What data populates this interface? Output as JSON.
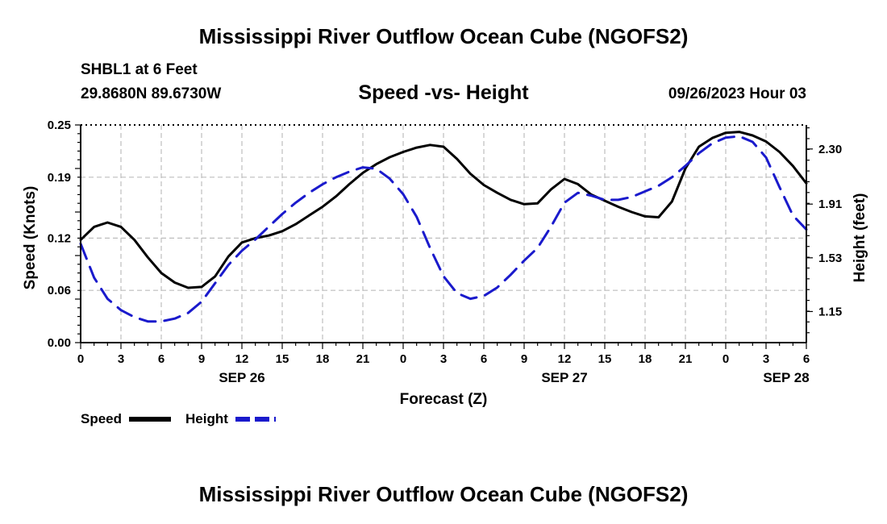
{
  "page": {
    "title_top": "Mississippi River Outflow Ocean Cube (NGOFS2)",
    "title_bottom": "Mississippi River Outflow Ocean Cube (NGOFS2)",
    "station": "SHBL1 at 6 Feet",
    "coords": "29.8680N  89.6730W",
    "subtitle": "Speed -vs- Height",
    "run_time": "09/26/2023 Hour 03"
  },
  "colors": {
    "speed": "#000000",
    "height": "#1a1acc",
    "grid": "#bdbdbd"
  },
  "chart_data": {
    "type": "line",
    "title": "Speed -vs- Height",
    "xlabel": "Forecast (Z)",
    "ylabel": "Speed (Knots)",
    "y2label": "Height (feet)",
    "x_range": [
      0,
      54
    ],
    "ylim": [
      0,
      0.25
    ],
    "y2lim": [
      0.93,
      2.47
    ],
    "x_ticks": [
      0,
      3,
      6,
      9,
      12,
      15,
      18,
      21,
      24,
      27,
      30,
      33,
      36,
      39,
      42,
      45,
      48,
      51,
      54
    ],
    "x_tick_labels": [
      "0",
      "3",
      "6",
      "9",
      "12",
      "15",
      "18",
      "21",
      "0",
      "3",
      "6",
      "9",
      "12",
      "15",
      "18",
      "21",
      "0",
      "3",
      "6"
    ],
    "date_labels": [
      {
        "x": 12,
        "label": "SEP 26"
      },
      {
        "x": 36,
        "label": "SEP 27"
      },
      {
        "x": 52.5,
        "label": "SEP 28"
      }
    ],
    "y_ticks": [
      0.0,
      0.06,
      0.12,
      0.19,
      0.25
    ],
    "y_tick_labels": [
      "0.00",
      "0.06",
      "0.12",
      "0.19",
      "0.25"
    ],
    "y2_ticks": [
      1.15,
      1.53,
      1.91,
      2.3
    ],
    "y2_tick_labels": [
      "1.15",
      "1.53",
      "1.91",
      "2.30"
    ],
    "grid": true,
    "legend": {
      "position": "bottom-left",
      "speed_label": "Speed",
      "height_label": "Height"
    },
    "series": [
      {
        "name": "Speed",
        "axis": "left",
        "style": "solid",
        "x": [
          0,
          1,
          2,
          3,
          4,
          5,
          6,
          7,
          8,
          9,
          10,
          11,
          12,
          13,
          14,
          15,
          16,
          17,
          18,
          19,
          20,
          21,
          22,
          23,
          24,
          25,
          26,
          27,
          28,
          29,
          30,
          31,
          32,
          33,
          34,
          35,
          36,
          37,
          38,
          39,
          40,
          41,
          42,
          43,
          44,
          45,
          46,
          47,
          48,
          49,
          50,
          51,
          52,
          53,
          54
        ],
        "values": [
          0.118,
          0.133,
          0.138,
          0.133,
          0.118,
          0.098,
          0.08,
          0.069,
          0.063,
          0.064,
          0.076,
          0.099,
          0.115,
          0.12,
          0.123,
          0.128,
          0.136,
          0.146,
          0.156,
          0.168,
          0.182,
          0.195,
          0.205,
          0.213,
          0.219,
          0.224,
          0.227,
          0.225,
          0.211,
          0.194,
          0.181,
          0.172,
          0.164,
          0.159,
          0.16,
          0.176,
          0.188,
          0.182,
          0.17,
          0.163,
          0.156,
          0.15,
          0.145,
          0.144,
          0.162,
          0.2,
          0.225,
          0.235,
          0.241,
          0.242,
          0.238,
          0.231,
          0.219,
          0.203,
          0.183
        ]
      },
      {
        "name": "Height",
        "axis": "right",
        "style": "dashed",
        "x": [
          0,
          1,
          2,
          3,
          4,
          5,
          6,
          7,
          8,
          9,
          10,
          11,
          12,
          13,
          14,
          15,
          16,
          17,
          18,
          19,
          20,
          21,
          22,
          23,
          24,
          25,
          26,
          27,
          28,
          29,
          30,
          31,
          32,
          33,
          34,
          35,
          36,
          37,
          38,
          39,
          40,
          41,
          42,
          43,
          44,
          45,
          46,
          47,
          48,
          49,
          50,
          51,
          52,
          53,
          54
        ],
        "values": [
          1.63,
          1.39,
          1.24,
          1.16,
          1.11,
          1.08,
          1.08,
          1.1,
          1.14,
          1.22,
          1.35,
          1.48,
          1.58,
          1.66,
          1.75,
          1.84,
          1.92,
          1.99,
          2.05,
          2.1,
          2.14,
          2.17,
          2.16,
          2.09,
          1.98,
          1.82,
          1.6,
          1.4,
          1.28,
          1.24,
          1.26,
          1.32,
          1.41,
          1.51,
          1.6,
          1.75,
          1.92,
          1.99,
          1.97,
          1.94,
          1.94,
          1.96,
          2.0,
          2.04,
          2.1,
          2.18,
          2.27,
          2.34,
          2.38,
          2.39,
          2.35,
          2.24,
          2.03,
          1.83,
          1.73
        ]
      }
    ]
  }
}
